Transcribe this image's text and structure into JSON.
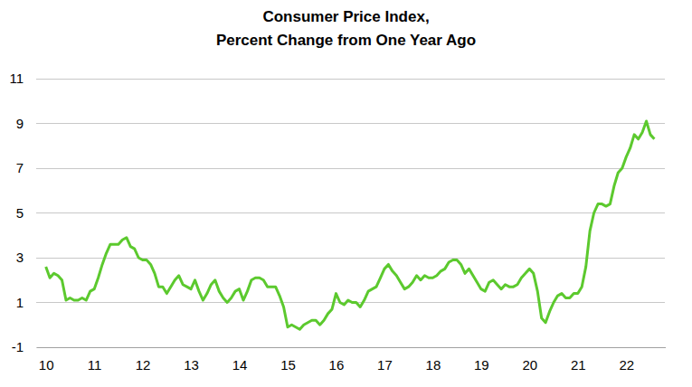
{
  "chart_data": {
    "type": "line",
    "title": "Consumer Price Index,",
    "subtitle": "Percent Change from One Year Ago",
    "x": [
      10,
      10.083,
      10.167,
      10.25,
      10.333,
      10.417,
      10.5,
      10.583,
      10.667,
      10.75,
      10.833,
      10.917,
      11,
      11.083,
      11.167,
      11.25,
      11.333,
      11.417,
      11.5,
      11.583,
      11.667,
      11.75,
      11.833,
      11.917,
      12,
      12.083,
      12.167,
      12.25,
      12.333,
      12.417,
      12.5,
      12.583,
      12.667,
      12.75,
      12.833,
      12.917,
      13,
      13.083,
      13.167,
      13.25,
      13.333,
      13.417,
      13.5,
      13.583,
      13.667,
      13.75,
      13.833,
      13.917,
      14,
      14.083,
      14.167,
      14.25,
      14.333,
      14.417,
      14.5,
      14.583,
      14.667,
      14.75,
      14.833,
      14.917,
      15,
      15.083,
      15.167,
      15.25,
      15.333,
      15.417,
      15.5,
      15.583,
      15.667,
      15.75,
      15.833,
      15.917,
      16,
      16.083,
      16.167,
      16.25,
      16.333,
      16.417,
      16.5,
      16.583,
      16.667,
      16.75,
      16.833,
      16.917,
      17,
      17.083,
      17.167,
      17.25,
      17.333,
      17.417,
      17.5,
      17.583,
      17.667,
      17.75,
      17.833,
      17.917,
      18,
      18.083,
      18.167,
      18.25,
      18.333,
      18.417,
      18.5,
      18.583,
      18.667,
      18.75,
      18.833,
      18.917,
      19,
      19.083,
      19.167,
      19.25,
      19.333,
      19.417,
      19.5,
      19.583,
      19.667,
      19.75,
      19.833,
      19.917,
      20,
      20.083,
      20.167,
      20.25,
      20.333,
      20.417,
      20.5,
      20.583,
      20.667,
      20.75,
      20.833,
      20.917,
      21,
      21.083,
      21.167,
      21.25,
      21.333,
      21.417,
      21.5,
      21.583,
      21.667,
      21.75,
      21.833,
      21.917,
      22,
      22.083,
      22.167,
      22.25,
      22.333,
      22.417,
      22.5,
      22.583
    ],
    "series": [
      {
        "color": "#5cc92e",
        "values": [
          2.6,
          2.1,
          2.3,
          2.2,
          2.0,
          1.1,
          1.2,
          1.1,
          1.1,
          1.2,
          1.1,
          1.5,
          1.6,
          2.1,
          2.7,
          3.2,
          3.6,
          3.6,
          3.6,
          3.8,
          3.9,
          3.5,
          3.4,
          3.0,
          2.9,
          2.9,
          2.7,
          2.3,
          1.7,
          1.7,
          1.4,
          1.7,
          2.0,
          2.2,
          1.8,
          1.7,
          1.6,
          2.0,
          1.5,
          1.1,
          1.4,
          1.8,
          2.0,
          1.5,
          1.2,
          1.0,
          1.2,
          1.5,
          1.6,
          1.1,
          1.5,
          2.0,
          2.1,
          2.1,
          2.0,
          1.7,
          1.7,
          1.7,
          1.3,
          0.8,
          -0.1,
          0.0,
          -0.1,
          -0.2,
          0.0,
          0.1,
          0.2,
          0.2,
          0.0,
          0.2,
          0.5,
          0.7,
          1.4,
          1.0,
          0.9,
          1.1,
          1.0,
          1.0,
          0.8,
          1.1,
          1.5,
          1.6,
          1.7,
          2.1,
          2.5,
          2.7,
          2.4,
          2.2,
          1.9,
          1.6,
          1.7,
          1.9,
          2.2,
          2.0,
          2.2,
          2.1,
          2.1,
          2.2,
          2.4,
          2.5,
          2.8,
          2.9,
          2.9,
          2.7,
          2.3,
          2.5,
          2.2,
          1.9,
          1.6,
          1.5,
          1.9,
          2.0,
          1.8,
          1.6,
          1.8,
          1.7,
          1.7,
          1.8,
          2.1,
          2.3,
          2.5,
          2.3,
          1.5,
          0.3,
          0.1,
          0.6,
          1.0,
          1.3,
          1.4,
          1.2,
          1.2,
          1.4,
          1.4,
          1.7,
          2.6,
          4.2,
          5.0,
          5.4,
          5.4,
          5.3,
          5.4,
          6.2,
          6.8,
          7.0,
          7.5,
          7.9,
          8.5,
          8.3,
          8.6,
          9.1,
          8.5,
          8.3
        ]
      }
    ],
    "xlim": [
      9.8,
      22.8
    ],
    "xticks": [
      10,
      11,
      12,
      13,
      14,
      15,
      16,
      17,
      18,
      19,
      20,
      21,
      22
    ],
    "ylim": [
      -1,
      11
    ],
    "yticks": [
      -1,
      1,
      3,
      5,
      7,
      9,
      11
    ],
    "grid": true
  }
}
